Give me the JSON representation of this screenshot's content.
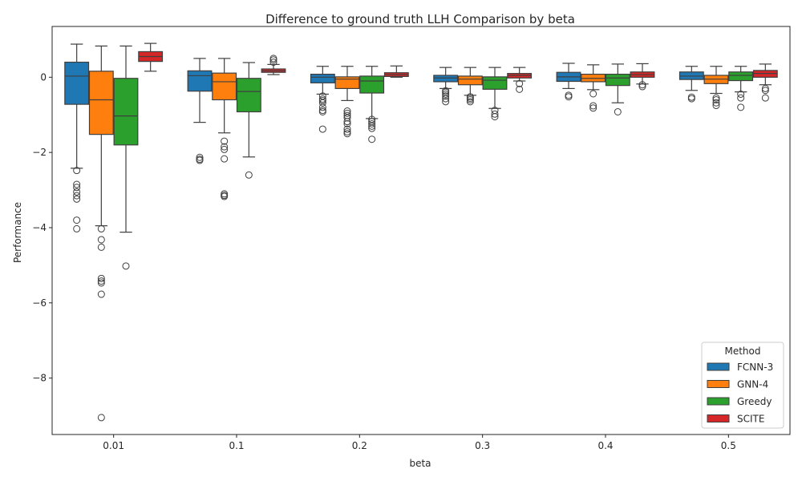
{
  "chart_data": {
    "type": "box",
    "title": "Difference to ground truth LLH Comparison by beta",
    "xlabel": "beta",
    "ylabel": "Performance",
    "categories": [
      "0.01",
      "0.1",
      "0.2",
      "0.3",
      "0.4",
      "0.5"
    ],
    "y_ticks": [
      0,
      -2,
      -4,
      -6,
      -8
    ],
    "y_tick_labels": [
      "0",
      "−2",
      "−4",
      "−6",
      "−8"
    ],
    "ylim": [
      -9.5,
      1.35
    ],
    "legend": {
      "title": "Method",
      "placement": "lower-right"
    },
    "series": [
      {
        "name": "FCNN-3",
        "color": "#1f77b4",
        "boxes": [
          {
            "whisker_low": -2.42,
            "q1": -0.72,
            "median": 0.03,
            "q3": 0.4,
            "whisker_high": 0.88,
            "outliers": [
              -2.48,
              -2.85,
              -2.93,
              -3.05,
              -3.15,
              -3.24,
              -3.8,
              -4.03
            ]
          },
          {
            "whisker_low": -1.2,
            "q1": -0.37,
            "median": 0.04,
            "q3": 0.17,
            "whisker_high": 0.5,
            "outliers": [
              -2.13,
              -2.18,
              -2.21
            ]
          },
          {
            "whisker_low": -0.45,
            "q1": -0.15,
            "median": 0.0,
            "q3": 0.08,
            "whisker_high": 0.29,
            "outliers": [
              -0.5,
              -0.58,
              -0.62,
              -0.68,
              -0.8,
              -0.88,
              -0.92,
              -1.38
            ]
          },
          {
            "whisker_low": -0.3,
            "q1": -0.12,
            "median": -0.02,
            "q3": 0.05,
            "whisker_high": 0.26,
            "outliers": [
              -0.36,
              -0.4,
              -0.45,
              -0.5,
              -0.57,
              -0.65
            ]
          },
          {
            "whisker_low": -0.3,
            "q1": -0.11,
            "median": 0.01,
            "q3": 0.13,
            "whisker_high": 0.37,
            "outliers": [
              -0.48,
              -0.52
            ]
          },
          {
            "whisker_low": -0.35,
            "q1": -0.06,
            "median": 0.03,
            "q3": 0.14,
            "whisker_high": 0.29,
            "outliers": [
              -0.53,
              -0.57
            ]
          }
        ]
      },
      {
        "name": "GNN-4",
        "color": "#ff7f0e",
        "boxes": [
          {
            "whisker_low": -3.95,
            "q1": -1.52,
            "median": -0.6,
            "q3": 0.16,
            "whisker_high": 0.83,
            "outliers": [
              -4.03,
              -4.32,
              -4.52,
              -5.35,
              -5.42,
              -5.47,
              -5.77,
              -9.05
            ]
          },
          {
            "whisker_low": -1.48,
            "q1": -0.6,
            "median": -0.12,
            "q3": 0.11,
            "whisker_high": 0.5,
            "outliers": [
              -1.7,
              -1.85,
              -1.92,
              -2.17,
              -3.1,
              -3.14,
              -3.17
            ]
          },
          {
            "whisker_low": -0.62,
            "q1": -0.3,
            "median": -0.05,
            "q3": 0.01,
            "whisker_high": 0.29,
            "outliers": [
              -0.9,
              -0.96,
              -1.02,
              -1.08,
              -1.18,
              -1.24,
              -1.38,
              -1.45,
              -1.5
            ]
          },
          {
            "whisker_low": -0.48,
            "q1": -0.2,
            "median": -0.05,
            "q3": 0.03,
            "whisker_high": 0.26,
            "outliers": [
              -0.52,
              -0.56,
              -0.6,
              -0.65
            ]
          },
          {
            "whisker_low": -0.33,
            "q1": -0.12,
            "median": -0.03,
            "q3": 0.08,
            "whisker_high": 0.33,
            "outliers": [
              -0.44,
              -0.76,
              -0.82
            ]
          },
          {
            "whisker_low": -0.43,
            "q1": -0.17,
            "median": -0.05,
            "q3": 0.05,
            "whisker_high": 0.29,
            "outliers": [
              -0.55,
              -0.6,
              -0.68,
              -0.75
            ]
          }
        ]
      },
      {
        "name": "Greedy",
        "color": "#2ca02c",
        "boxes": [
          {
            "whisker_low": -4.12,
            "q1": -1.8,
            "median": -1.03,
            "q3": -0.03,
            "whisker_high": 0.83,
            "outliers": [
              -5.02
            ]
          },
          {
            "whisker_low": -2.12,
            "q1": -0.92,
            "median": -0.38,
            "q3": -0.03,
            "whisker_high": 0.39,
            "outliers": [
              -2.6
            ]
          },
          {
            "whisker_low": -1.1,
            "q1": -0.42,
            "median": -0.1,
            "q3": 0.03,
            "whisker_high": 0.29,
            "outliers": [
              -1.12,
              -1.18,
              -1.24,
              -1.3,
              -1.36,
              -1.65
            ]
          },
          {
            "whisker_low": -0.83,
            "q1": -0.32,
            "median": -0.08,
            "q3": 0.01,
            "whisker_high": 0.26,
            "outliers": [
              -0.88,
              -0.98,
              -1.05
            ]
          },
          {
            "whisker_low": -0.68,
            "q1": -0.22,
            "median": -0.02,
            "q3": 0.08,
            "whisker_high": 0.35,
            "outliers": [
              -0.92
            ]
          },
          {
            "whisker_low": -0.39,
            "q1": -0.09,
            "median": 0.05,
            "q3": 0.14,
            "whisker_high": 0.29,
            "outliers": [
              -0.45,
              -0.55,
              -0.8
            ]
          }
        ]
      },
      {
        "name": "SCITE",
        "color": "#d62728",
        "boxes": [
          {
            "whisker_low": 0.16,
            "q1": 0.42,
            "median": 0.55,
            "q3": 0.68,
            "whisker_high": 0.9,
            "outliers": []
          },
          {
            "whisker_low": 0.07,
            "q1": 0.13,
            "median": 0.17,
            "q3": 0.22,
            "whisker_high": 0.34,
            "outliers": [
              0.4,
              0.46,
              0.5
            ]
          },
          {
            "whisker_low": 0.0,
            "q1": 0.02,
            "median": 0.07,
            "q3": 0.12,
            "whisker_high": 0.3,
            "outliers": []
          },
          {
            "whisker_low": -0.1,
            "q1": -0.02,
            "median": 0.05,
            "q3": 0.1,
            "whisker_high": 0.26,
            "outliers": [
              -0.17,
              -0.32
            ]
          },
          {
            "whisker_low": -0.18,
            "q1": 0.0,
            "median": 0.07,
            "q3": 0.14,
            "whisker_high": 0.36,
            "outliers": [
              -0.2,
              -0.25
            ]
          },
          {
            "whisker_low": -0.2,
            "q1": 0.0,
            "median": 0.1,
            "q3": 0.18,
            "whisker_high": 0.35,
            "outliers": [
              -0.3,
              -0.35,
              -0.55
            ]
          }
        ]
      }
    ]
  }
}
